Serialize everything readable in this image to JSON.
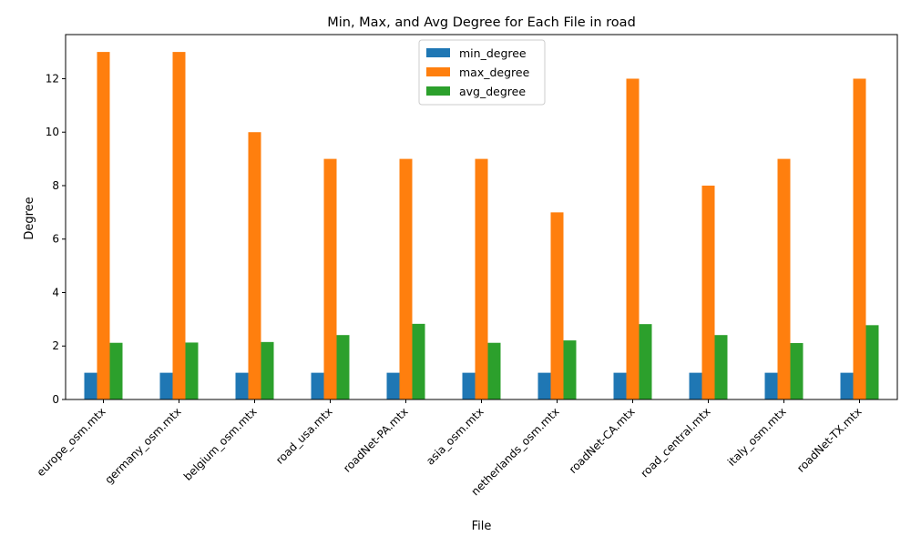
{
  "chart_data": {
    "type": "bar",
    "title": "Min, Max, and Avg Degree for Each File in road",
    "xlabel": "File",
    "ylabel": "Degree",
    "ylim": [
      0,
      13.65
    ],
    "yticks": [
      0,
      2,
      4,
      6,
      8,
      10,
      12
    ],
    "grid": false,
    "legend_position": "top-center",
    "categories": [
      "europe_osm.mtx",
      "germany_osm.mtx",
      "belgium_osm.mtx",
      "road_usa.mtx",
      "roadNet-PA.mtx",
      "asia_osm.mtx",
      "netherlands_osm.mtx",
      "roadNet-CA.mtx",
      "road_central.mtx",
      "italy_osm.mtx",
      "roadNet-TX.mtx"
    ],
    "series": [
      {
        "name": "min_degree",
        "color": "#1f77b4",
        "values": [
          1,
          1,
          1,
          1,
          1,
          1,
          1,
          1,
          1,
          1,
          1
        ]
      },
      {
        "name": "max_degree",
        "color": "#ff7f0e",
        "values": [
          13,
          13,
          10,
          9,
          9,
          9,
          7,
          12,
          8,
          9,
          12
        ]
      },
      {
        "name": "avg_degree",
        "color": "#2ca02c",
        "values": [
          2.12,
          2.13,
          2.15,
          2.41,
          2.83,
          2.12,
          2.21,
          2.82,
          2.41,
          2.11,
          2.78
        ]
      }
    ]
  }
}
